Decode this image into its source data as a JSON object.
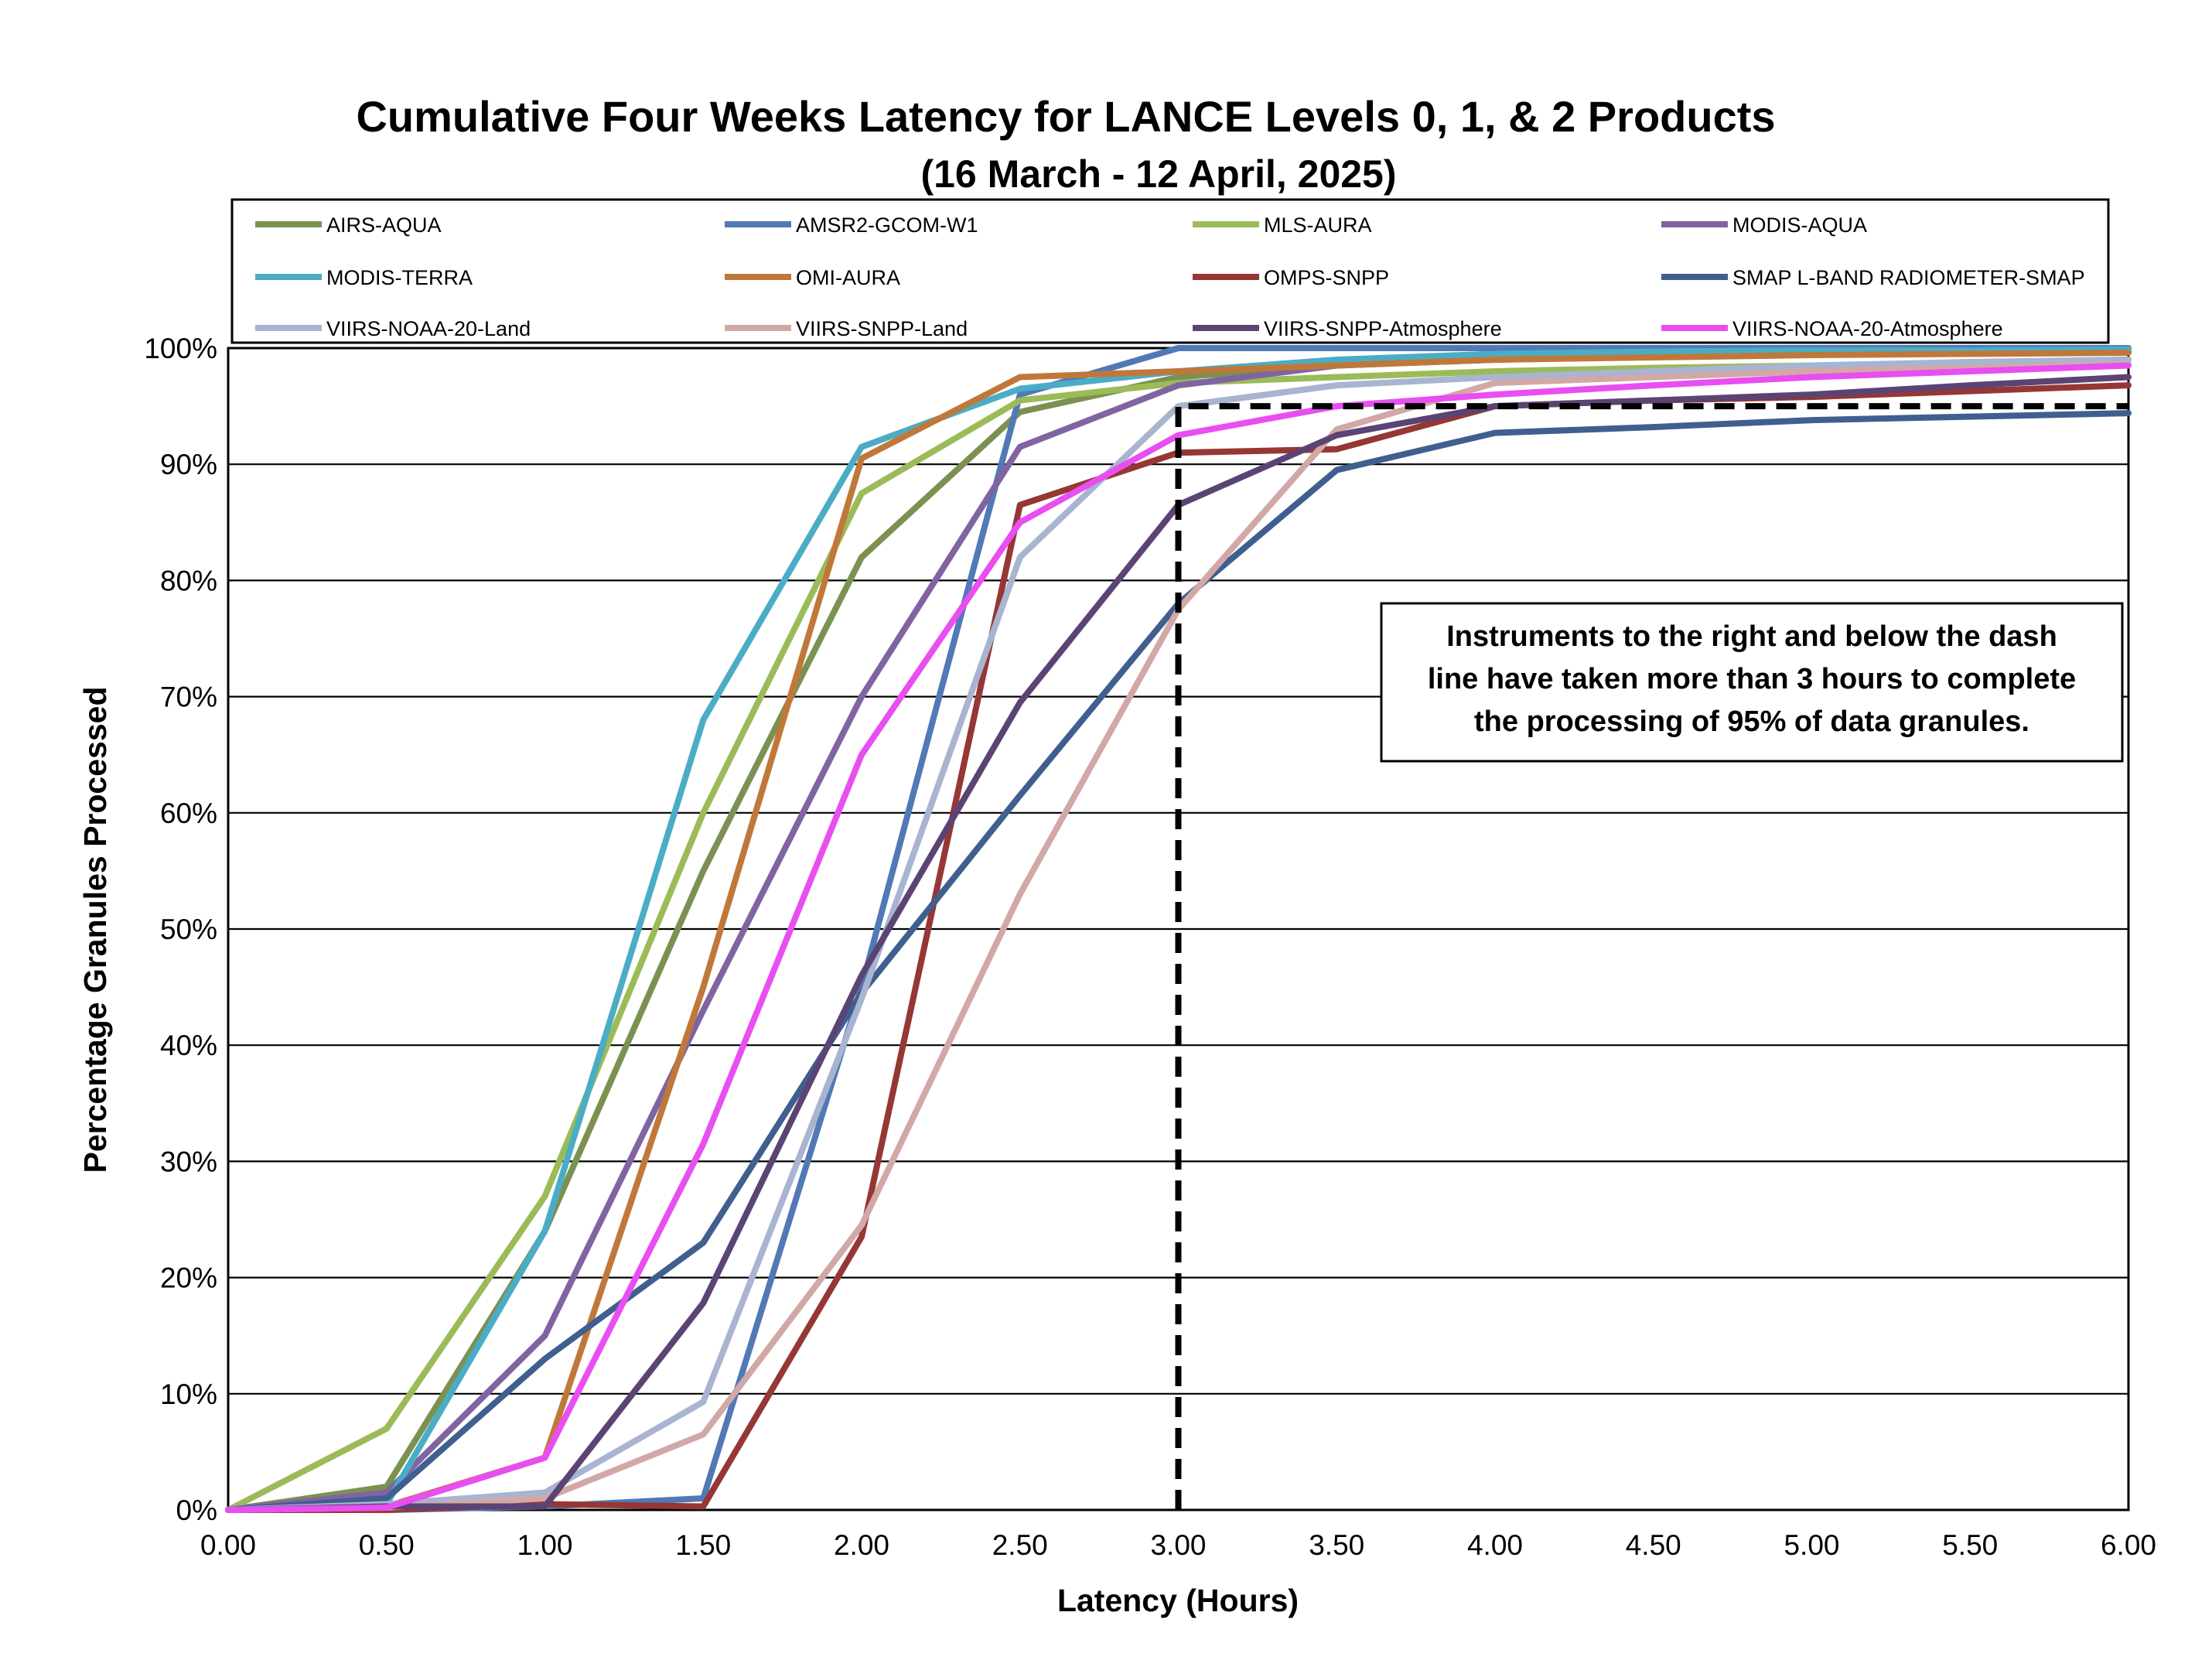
{
  "chart_data": {
    "type": "line",
    "title": "Cumulative Four Weeks Latency  for LANCE Levels 0, 1, & 2 Products",
    "subtitle": "(16  March   -  12  April,  2025)",
    "xlabel": "Latency (Hours)",
    "ylabel": "Percentage Granules Processed",
    "x": [
      0.0,
      0.5,
      1.0,
      1.5,
      2.0,
      2.5,
      3.0,
      3.5,
      4.0,
      4.5,
      5.0,
      5.5,
      6.0
    ],
    "xlim": [
      0,
      6
    ],
    "ylim": [
      0,
      100
    ],
    "x_ticks": [
      "0.00",
      "0.50",
      "1.00",
      "1.50",
      "2.00",
      "2.50",
      "3.00",
      "3.50",
      "4.00",
      "4.50",
      "5.00",
      "5.50",
      "6.00"
    ],
    "y_ticks": [
      "0%",
      "10%",
      "20%",
      "30%",
      "40%",
      "50%",
      "60%",
      "70%",
      "80%",
      "90%",
      "100%"
    ],
    "grid": "horizontal",
    "legend_position": "top",
    "series": [
      {
        "name": "AIRS-AQUA",
        "color": "#7B9151",
        "values": [
          0,
          2,
          24,
          55,
          82,
          94.5,
          97.5,
          98.5,
          99,
          99.3,
          99.5,
          99.6,
          99.7
        ]
      },
      {
        "name": "AMSR2-GCOM-W1",
        "color": "#5079B6",
        "values": [
          0,
          0,
          0.3,
          1,
          45,
          96,
          100,
          100,
          100,
          100,
          100,
          100,
          100
        ]
      },
      {
        "name": "MLS-AURA",
        "color": "#9BBB59",
        "values": [
          0,
          7,
          27,
          60,
          87.5,
          95.5,
          97,
          97.5,
          98,
          98.3,
          98.5,
          98.7,
          99
        ]
      },
      {
        "name": "MODIS-AQUA",
        "color": "#8064A2",
        "values": [
          0,
          1.5,
          15,
          43,
          70,
          91.5,
          96.8,
          98.5,
          99,
          99.3,
          99.5,
          99.6,
          99.7
        ]
      },
      {
        "name": "MODIS-TERRA",
        "color": "#4BACC6",
        "values": [
          0,
          0.5,
          24,
          68,
          91.5,
          96.5,
          98,
          99,
          99.5,
          99.7,
          99.8,
          99.8,
          99.9
        ]
      },
      {
        "name": "OMI-AURA",
        "color": "#C0783A",
        "values": [
          0,
          0.3,
          4.5,
          45,
          90.5,
          97.5,
          98,
          98.5,
          99,
          99.2,
          99.4,
          99.5,
          99.6
        ]
      },
      {
        "name": "OMPS-SNPP",
        "color": "#953735",
        "values": [
          0,
          0,
          0.5,
          0.3,
          23.5,
          86.5,
          91,
          91.3,
          95,
          95.5,
          95.8,
          96.3,
          96.8
        ]
      },
      {
        "name": "SMAP L-BAND RADIOMETER-SMAP",
        "color": "#3F5F8F",
        "values": [
          0,
          1,
          13,
          23,
          44.5,
          61.5,
          78,
          89.5,
          92.7,
          93.2,
          93.8,
          94.1,
          94.4
        ]
      },
      {
        "name": "VIIRS-NOAA-20-Land",
        "color": "#A8B4D0",
        "values": [
          0,
          0.5,
          1.5,
          9.3,
          44,
          82,
          95,
          96.8,
          97.5,
          98,
          98.5,
          98.8,
          99
        ]
      },
      {
        "name": "VIIRS-SNPP-Land",
        "color": "#D2A8A6",
        "values": [
          0,
          0.2,
          1,
          6.5,
          24.5,
          53,
          77.5,
          93,
          97,
          97.5,
          98,
          98.3,
          98.6
        ]
      },
      {
        "name": "VIIRS-SNPP-Atmosphere",
        "color": "#5B4474",
        "values": [
          0,
          0.3,
          0.3,
          17.8,
          46,
          69.5,
          86.5,
          92.5,
          95,
          95.5,
          96,
          96.8,
          97.5
        ]
      },
      {
        "name": "VIIRS-NOAA-20-Atmosphere",
        "color": "#E84EF0",
        "values": [
          0,
          0.2,
          4.5,
          31.5,
          65,
          85,
          92.5,
          95,
          96,
          96.8,
          97.5,
          98,
          98.5
        ]
      }
    ],
    "reference_line": {
      "type": "dashed",
      "points": [
        [
          3.0,
          0
        ],
        [
          3.0,
          95
        ],
        [
          6.0,
          95
        ]
      ],
      "color": "#000000"
    },
    "annotation": [
      "Instruments to the right and below the dash",
      "line have taken more than 3 hours to complete",
      "the processing of 95% of data granules."
    ]
  }
}
